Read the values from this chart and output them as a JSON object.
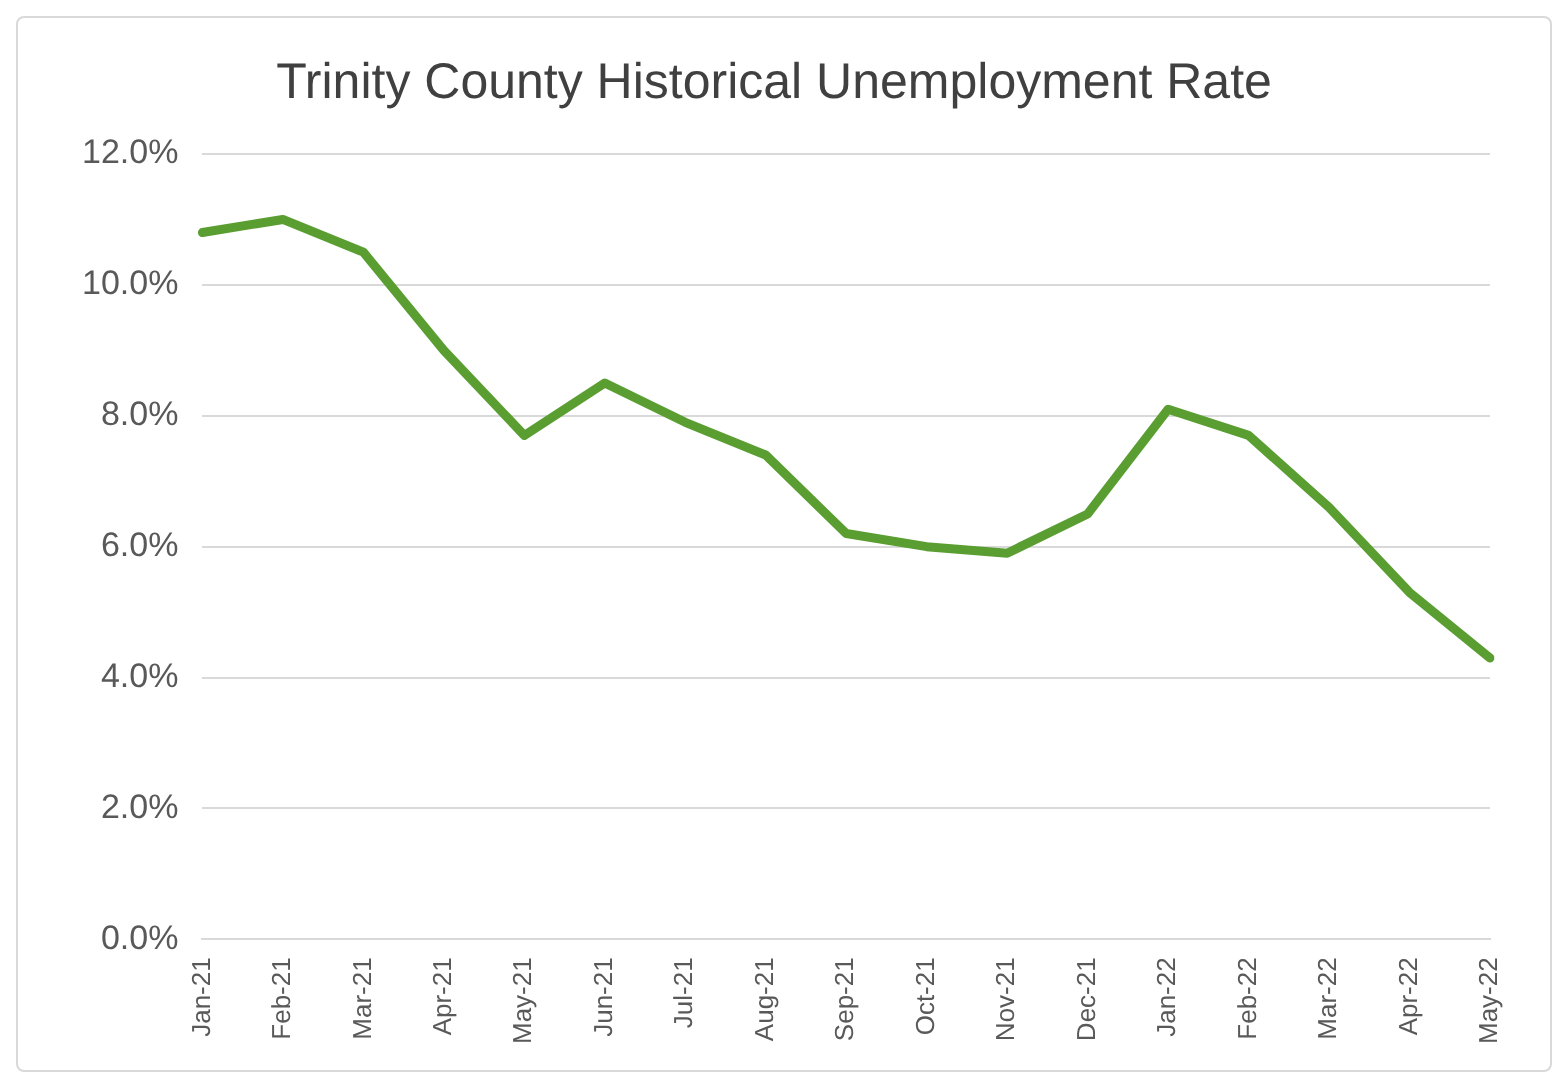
{
  "chart_data": {
    "type": "line",
    "title": "Trinity County Historical Unemployment Rate",
    "categories": [
      "Jan-21",
      "Feb-21",
      "Mar-21",
      "Apr-21",
      "May-21",
      "Jun-21",
      "Jul-21",
      "Aug-21",
      "Sep-21",
      "Oct-21",
      "Nov-21",
      "Dec-21",
      "Jan-22",
      "Feb-22",
      "Mar-22",
      "Apr-22",
      "May-22"
    ],
    "series": [
      {
        "color": "#5a9e32",
        "values": [
          10.8,
          11.0,
          10.5,
          9.0,
          7.7,
          8.5,
          7.9,
          7.4,
          6.2,
          6.0,
          5.9,
          6.5,
          8.1,
          7.7,
          6.6,
          5.3,
          4.3
        ]
      }
    ],
    "ylim": [
      0,
      12
    ],
    "yticks": [
      {
        "value": 0,
        "label": "0.0%"
      },
      {
        "value": 2,
        "label": "2.0%"
      },
      {
        "value": 4,
        "label": "4.0%"
      },
      {
        "value": 6,
        "label": "6.0%"
      },
      {
        "value": 8,
        "label": "8.0%"
      },
      {
        "value": 10,
        "label": "10.0%"
      },
      {
        "value": 12,
        "label": "12.0%"
      }
    ],
    "grid": "y",
    "legend": false,
    "marker": "none",
    "line_style": "solid"
  }
}
